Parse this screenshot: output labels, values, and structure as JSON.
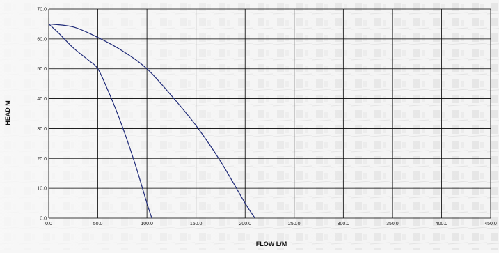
{
  "chart_data": {
    "type": "line",
    "title": "",
    "xlabel": "FLOW L/M",
    "ylabel": "HEAD M",
    "xlim": [
      0,
      450
    ],
    "ylim": [
      0,
      70
    ],
    "x_ticks": [
      "0.0",
      "50.0",
      "100.0",
      "150.0",
      "200.0",
      "250.0",
      "300.0",
      "350.0",
      "400.0",
      "450.0"
    ],
    "y_ticks": [
      "0.0",
      "10.0",
      "20.0",
      "30.0",
      "40.0",
      "50.0",
      "60.0",
      "70.0"
    ],
    "grid": true,
    "line_color": "#1f2a78",
    "series": [
      {
        "x": [
          0,
          10,
          25,
          40,
          50,
          60,
          70,
          80,
          90,
          100,
          105
        ],
        "y": [
          65,
          62,
          57,
          53,
          50,
          43,
          35,
          26,
          16,
          5,
          0
        ]
      },
      {
        "x": [
          0,
          25,
          50,
          75,
          100,
          125,
          150,
          175,
          200,
          210
        ],
        "y": [
          65,
          64,
          60.5,
          56,
          50,
          41,
          31,
          19,
          5,
          0
        ]
      }
    ]
  }
}
